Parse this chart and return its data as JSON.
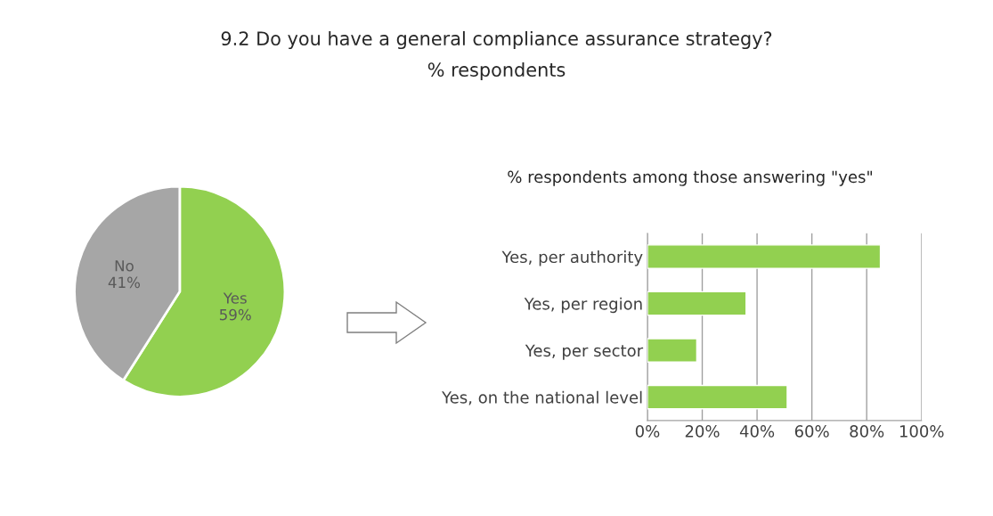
{
  "chart_data": [
    {
      "type": "pie",
      "title": "9.2 Do you have a general compliance assurance strategy?",
      "subtitle": "% respondents",
      "categories": [
        "Yes",
        "No"
      ],
      "values": [
        59,
        41
      ],
      "colors": [
        "#92d050",
        "#a6a6a6"
      ],
      "value_labels": [
        "59%",
        "41%"
      ]
    },
    {
      "type": "bar",
      "orientation": "horizontal",
      "title": "% respondents among those answering \"yes\"",
      "categories": [
        "Yes, per authority",
        "Yes, per region",
        "Yes, per sector",
        "Yes, on the national level"
      ],
      "values": [
        85,
        36,
        18,
        51
      ],
      "color": "#92d050",
      "xlim": [
        0,
        100
      ],
      "xticks": [
        {
          "value": 0,
          "label": "0%"
        },
        {
          "value": 20,
          "label": "20%"
        },
        {
          "value": 40,
          "label": "40%"
        },
        {
          "value": 60,
          "label": "60%"
        },
        {
          "value": 80,
          "label": "80%"
        },
        {
          "value": 100,
          "label": "100%"
        }
      ],
      "grid": "x"
    }
  ]
}
